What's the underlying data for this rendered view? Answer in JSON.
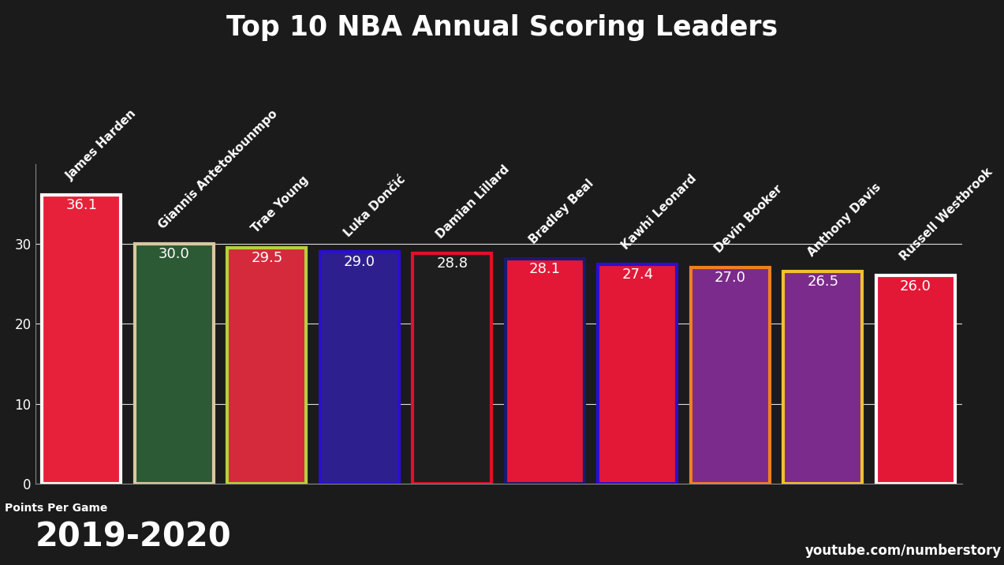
{
  "chart_data": {
    "type": "bar",
    "title": "Top 10 NBA Annual Scoring Leaders",
    "categories": [
      "James Harden",
      "Giannis Antetokounmpo",
      "Trae Young",
      "Luka Dončić",
      "Damian Lillard",
      "Bradley Beal",
      "Kawhi Leonard",
      "Devin Booker",
      "Anthony Davis",
      "Russell Westbrook"
    ],
    "values": [
      36.1,
      30.0,
      29.5,
      29.0,
      28.8,
      28.1,
      27.4,
      27.0,
      26.5,
      26.0
    ],
    "colors": [
      "#e8213a",
      "#2b5a34",
      "#d42a3c",
      "#2e1f8f",
      "#1e1e1e",
      "#e31837",
      "#e31837",
      "#7b2b8c",
      "#7b2b8c",
      "#e31837"
    ],
    "y_label": "Points Per Game",
    "annotations": [
      "2019-2020",
      "youtube.com/numberstory"
    ],
    "ylim": [
      0,
      40
    ],
    "yticks": [
      0,
      10,
      20,
      30
    ],
    "grid": true,
    "data_labels": true,
    "tick_labels": "y"
  }
}
